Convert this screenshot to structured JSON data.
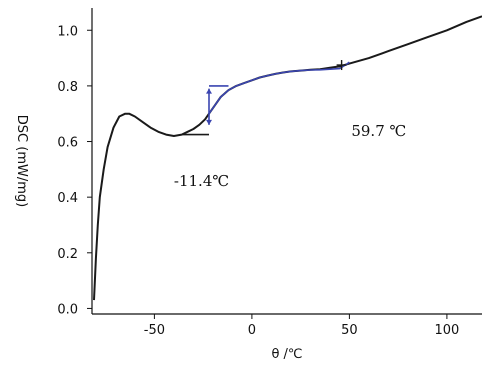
{
  "chart_data": {
    "type": "line",
    "xlabel": "θ /℃",
    "ylabel": "DSC (mW/mg)",
    "xlim": [
      -82,
      118
    ],
    "ylim": [
      -0.02,
      1.08
    ],
    "x_ticks": [
      -50,
      0,
      50,
      100
    ],
    "x_tick_labels": [
      "-50",
      "0",
      "50",
      "100"
    ],
    "y_ticks": [
      0.0,
      0.2,
      0.4,
      0.6,
      0.8,
      1.0
    ],
    "y_tick_labels": [
      "0.0",
      "0.2",
      "0.4",
      "0.6",
      "0.8",
      "1.0"
    ],
    "grid": false,
    "series": [
      {
        "color": "#1a1a1a",
        "x": [
          -81,
          -80,
          -79,
          -78,
          -76,
          -74,
          -71,
          -68,
          -65,
          -63,
          -60,
          -56,
          -52,
          -48,
          -44,
          -40,
          -36,
          -33,
          -30,
          -27,
          -24,
          -22,
          -19,
          -16,
          -12,
          -8,
          -4,
          0,
          4,
          8,
          12,
          16,
          20,
          25,
          30,
          35,
          40,
          45,
          50,
          60,
          70,
          80,
          90,
          100,
          110,
          118
        ],
        "y": [
          0.03,
          0.18,
          0.3,
          0.4,
          0.5,
          0.58,
          0.65,
          0.69,
          0.7,
          0.7,
          0.69,
          0.67,
          0.65,
          0.635,
          0.625,
          0.62,
          0.625,
          0.635,
          0.645,
          0.66,
          0.68,
          0.7,
          0.73,
          0.76,
          0.785,
          0.8,
          0.81,
          0.82,
          0.83,
          0.837,
          0.843,
          0.848,
          0.852,
          0.855,
          0.858,
          0.86,
          0.865,
          0.87,
          0.88,
          0.9,
          0.925,
          0.95,
          0.975,
          1.0,
          1.03,
          1.05
        ]
      }
    ],
    "blue_color": "#3a45b0",
    "blue_overlay": {
      "x": [
        -22,
        -19,
        -16,
        -12,
        -8,
        -4,
        0,
        4,
        8,
        12,
        16,
        20,
        25,
        30,
        35,
        40,
        45,
        48,
        50
      ],
      "y": [
        0.7,
        0.73,
        0.76,
        0.785,
        0.8,
        0.81,
        0.82,
        0.83,
        0.837,
        0.843,
        0.848,
        0.852,
        0.855,
        0.857,
        0.858,
        0.86,
        0.862,
        0.875,
        0.885
      ]
    },
    "baseline_low": {
      "x": [
        -36,
        -22
      ],
      "y": [
        0.625,
        0.625
      ]
    },
    "baseline_high": {
      "x": [
        -22,
        -12
      ],
      "y": [
        0.8,
        0.8
      ]
    },
    "onset_marker_x": -22,
    "onset_marker_y": [
      0.66,
      0.79
    ],
    "second_marker": {
      "x": 46,
      "y": 0.875
    },
    "annotations": [
      {
        "text": "-11.4℃",
        "x": -40,
        "y": 0.44
      },
      {
        "text": "59.7 ℃",
        "x": 51,
        "y": 0.62
      }
    ]
  }
}
